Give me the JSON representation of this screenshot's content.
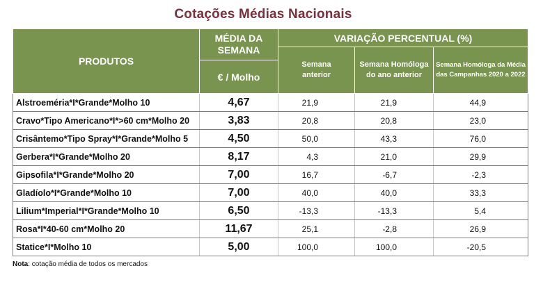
{
  "title": "Cotações Médias Nacionais",
  "header": {
    "produtos": "PRODUTOS",
    "media_semana": "MÉDIA DA SEMANA",
    "unit": "€ / Molho",
    "variacao": "VARIAÇÃO PERCENTUAL (%)",
    "sub1": "Semana anterior",
    "sub2": "Semana Homóloga do ano anterior",
    "sub3": "Semana Homóloga da Média das Campanhas 2020 a 2022"
  },
  "rows": [
    {
      "produto": "Alstroeméria*I*Grande*Molho 10",
      "preco": "4,67",
      "v1": "21,9",
      "v2": "21,9",
      "v3": "44,9"
    },
    {
      "produto": "Cravo*Tipo Americano*I*>60 cm*Molho 20",
      "preco": "3,83",
      "v1": "20,8",
      "v2": "20,8",
      "v3": "23,0"
    },
    {
      "produto": "Crisântemo*Tipo Spray*I*Grande*Molho 5",
      "preco": "4,50",
      "v1": "50,0",
      "v2": "43,3",
      "v3": "76,0"
    },
    {
      "produto": "Gerbera*I*Grande*Molho 20",
      "preco": "8,17",
      "v1": "4,3",
      "v2": "21,0",
      "v3": "29,9"
    },
    {
      "produto": "Gipsofila*I*Grande*Molho 20",
      "preco": "7,00",
      "v1": "16,7",
      "v2": "-6,7",
      "v3": "-2,3"
    },
    {
      "produto": "Gladíolo*I*Grande*Molho 10",
      "preco": "7,00",
      "v1": "40,0",
      "v2": "40,0",
      "v3": "33,3"
    },
    {
      "produto": "Lilium*Imperial*I*Grande*Molho 10",
      "preco": "6,50",
      "v1": "-13,3",
      "v2": "-13,3",
      "v3": "5,4"
    },
    {
      "produto": "Rosa*I*40-60 cm*Molho 20",
      "preco": "11,67",
      "v1": "25,1",
      "v2": "-2,8",
      "v3": "26,9"
    },
    {
      "produto": "Statice*I*Molho 10",
      "preco": "5,00",
      "v1": "100,0",
      "v2": "100,0",
      "v3": "-20,5"
    }
  ],
  "note": {
    "label": "Nota",
    "text": ": cotação média de todos os mercados"
  }
}
